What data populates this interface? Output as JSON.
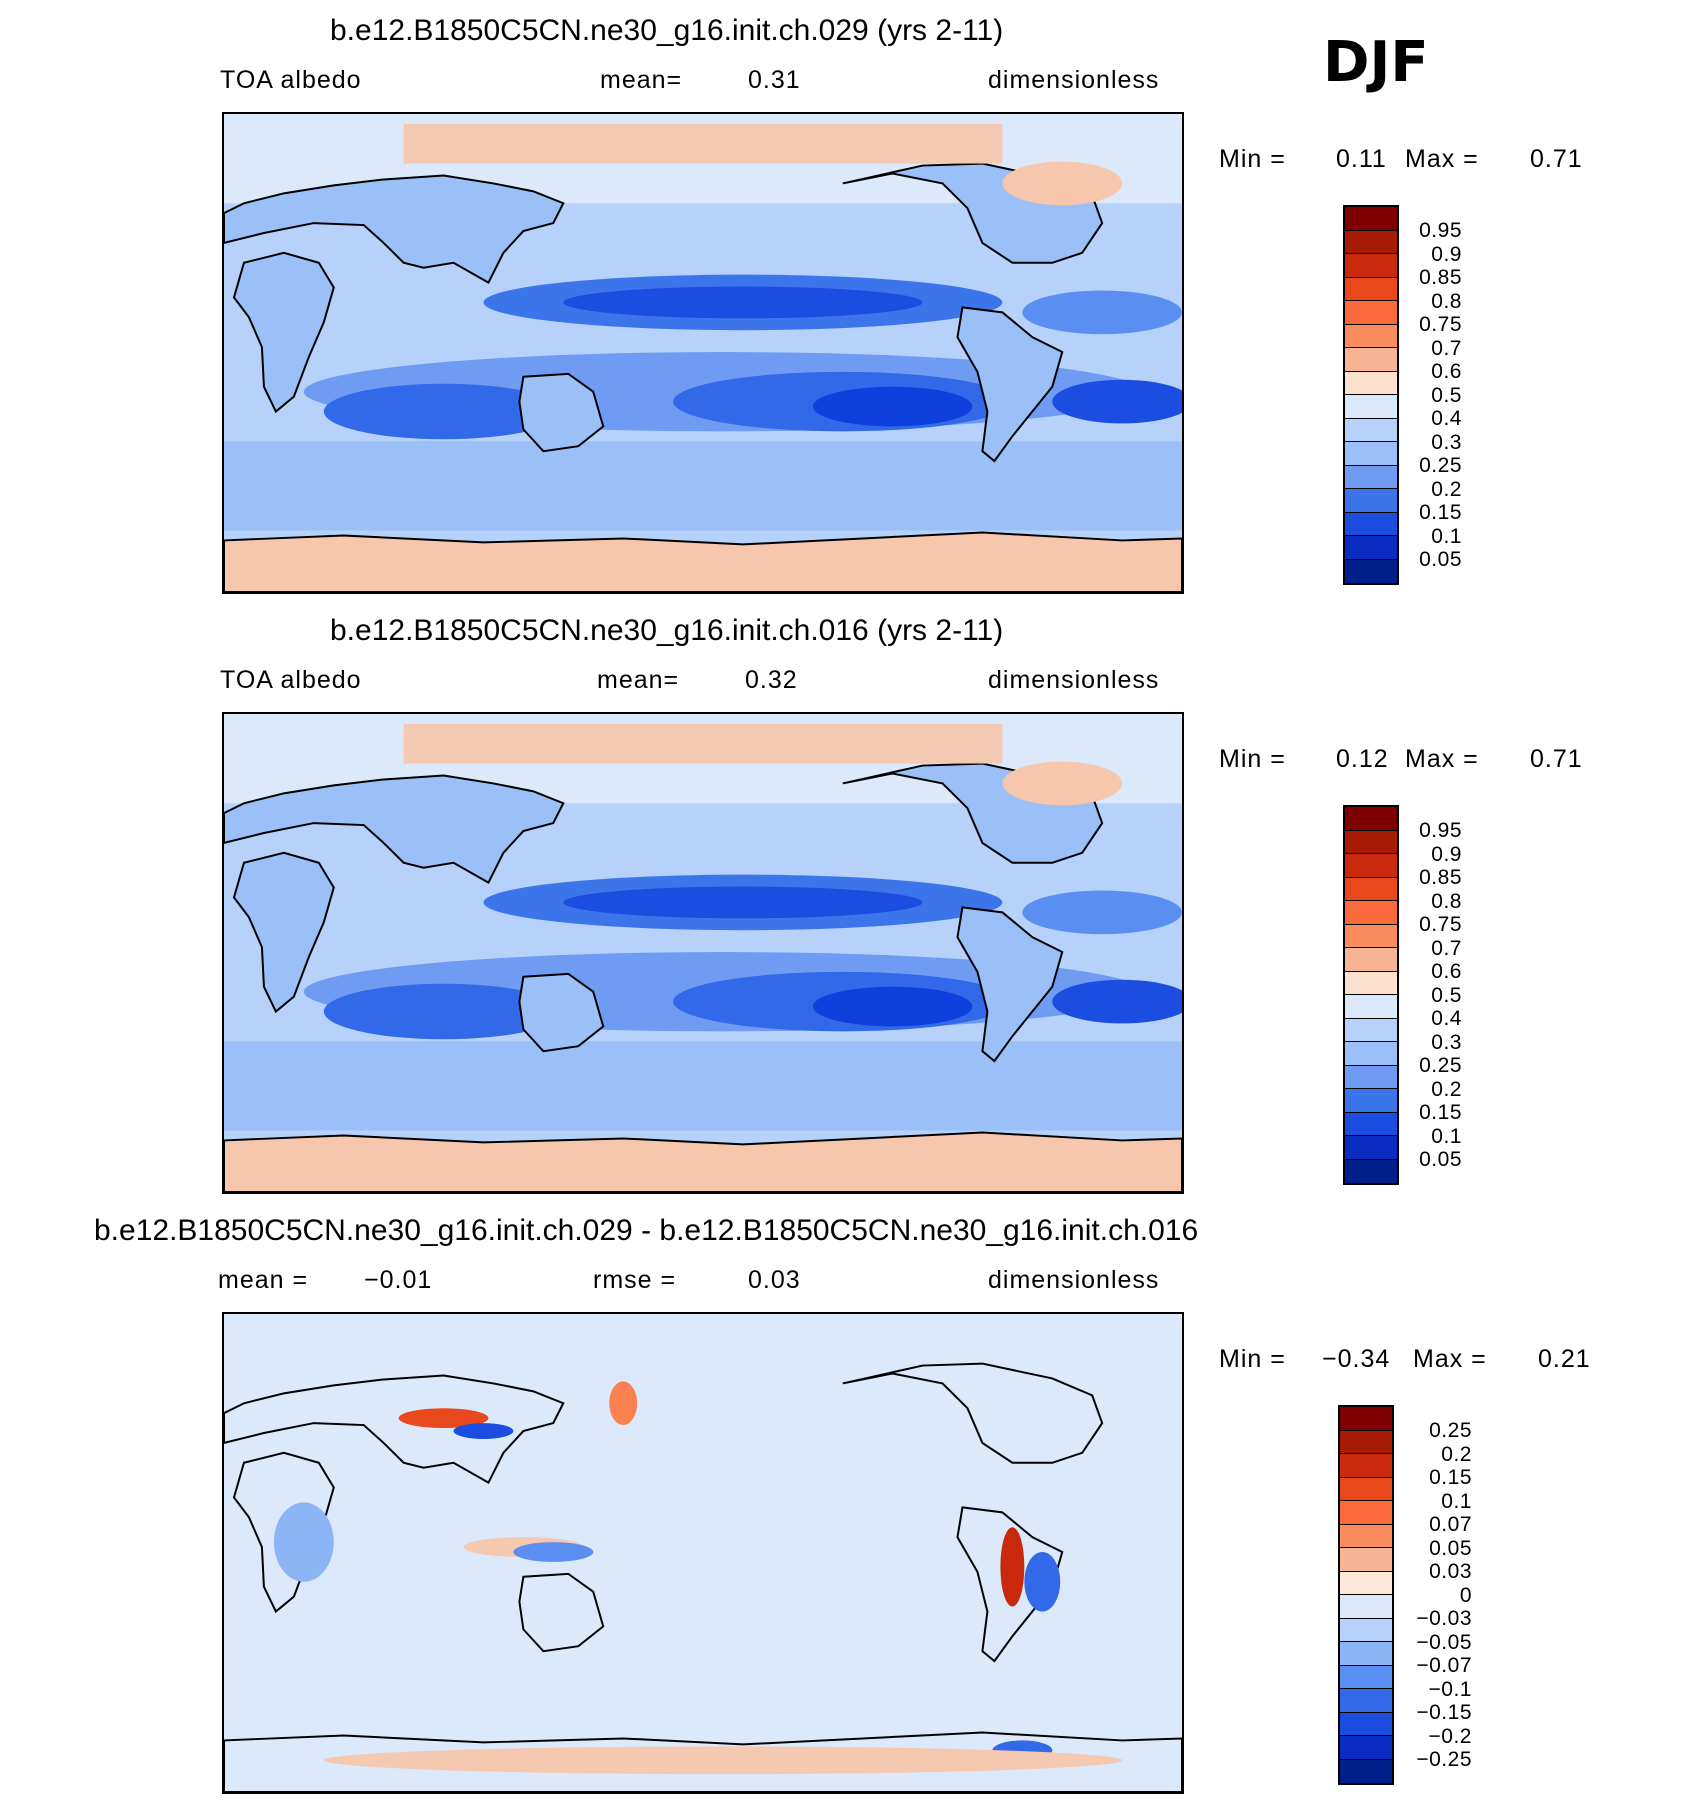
{
  "season": "DJF",
  "colors": {
    "positive": [
      "#f5c9b0",
      "#f4a582",
      "#fb8050",
      "#e8481b",
      "#c9290c",
      "#a6180a",
      "#7f0000"
    ],
    "negative": [
      "#dbe9fb",
      "#b6d2fa",
      "#8cb5f6",
      "#5a8ef0",
      "#3169e8",
      "#0f3fdc",
      "#00249e",
      "#001a7a"
    ],
    "ice": "#f6c7ad",
    "land": "#c2d8f8"
  },
  "panels": [
    {
      "id": "top",
      "title": "b.e12.B1850C5CN.ne30_g16.init.ch.029 (yrs 2-11)",
      "left": "TOA albedo",
      "mid_label": "mean=",
      "mid_value": "0.31",
      "right": "dimensionless",
      "min_label": "Min =",
      "min": "0.11",
      "max_label": "Max =",
      "max": "0.71",
      "colorbar": {
        "labels": [
          "0.95",
          "0.9",
          "0.85",
          "0.8",
          "0.75",
          "0.7",
          "0.6",
          "0.5",
          "0.4",
          "0.3",
          "0.25",
          "0.2",
          "0.15",
          "0.1",
          "0.05"
        ],
        "colors": [
          "#7f0000",
          "#a61a06",
          "#c9290c",
          "#e8481b",
          "#fb6a3c",
          "#fb8c5e",
          "#f7b596",
          "#fde1d0",
          "#dbe9fb",
          "#b6d2fa",
          "#9bc0f8",
          "#6f9cf2",
          "#3c74ea",
          "#1a4de0",
          "#0a2cc0",
          "#001f8a"
        ]
      }
    },
    {
      "id": "middle",
      "title": "b.e12.B1850C5CN.ne30_g16.init.ch.016 (yrs 2-11)",
      "left": "TOA albedo",
      "mid_label": "mean=",
      "mid_value": "0.32",
      "right": "dimensionless",
      "min_label": "Min =",
      "min": "0.12",
      "max_label": "Max =",
      "max": "0.71",
      "colorbar": {
        "labels": [
          "0.95",
          "0.9",
          "0.85",
          "0.8",
          "0.75",
          "0.7",
          "0.6",
          "0.5",
          "0.4",
          "0.3",
          "0.25",
          "0.2",
          "0.15",
          "0.1",
          "0.05"
        ],
        "colors": [
          "#7f0000",
          "#a61a06",
          "#c9290c",
          "#e8481b",
          "#fb6a3c",
          "#fb8c5e",
          "#f7b596",
          "#fde1d0",
          "#dbe9fb",
          "#b6d2fa",
          "#9bc0f8",
          "#6f9cf2",
          "#3c74ea",
          "#1a4de0",
          "#0a2cc0",
          "#001f8a"
        ]
      }
    },
    {
      "id": "bottom",
      "title": "b.e12.B1850C5CN.ne30_g16.init.ch.029 - b.e12.B1850C5CN.ne30_g16.init.ch.016",
      "left_label": "mean =",
      "left_value": "−0.01",
      "mid_label": "rmse =",
      "mid_value": "0.03",
      "right": "dimensionless",
      "min_label": "Min =",
      "min": "−0.34",
      "max_label": "Max =",
      "max": "0.21",
      "colorbar": {
        "labels": [
          "0.25",
          "0.2",
          "0.15",
          "0.1",
          "0.07",
          "0.05",
          "0.03",
          "0",
          "−0.03",
          "−0.05",
          "−0.07",
          "−0.1",
          "−0.15",
          "−0.2",
          "−0.25"
        ],
        "colors": [
          "#7f0000",
          "#a61a06",
          "#c9290c",
          "#e8481b",
          "#fb6a3c",
          "#fb8c5e",
          "#f7b596",
          "#fde9dc",
          "#dbe9fb",
          "#b6d2fa",
          "#8cb5f6",
          "#5a8ef0",
          "#3169e8",
          "#1a4de0",
          "#0a2cc0",
          "#001f8a"
        ]
      }
    }
  ]
}
